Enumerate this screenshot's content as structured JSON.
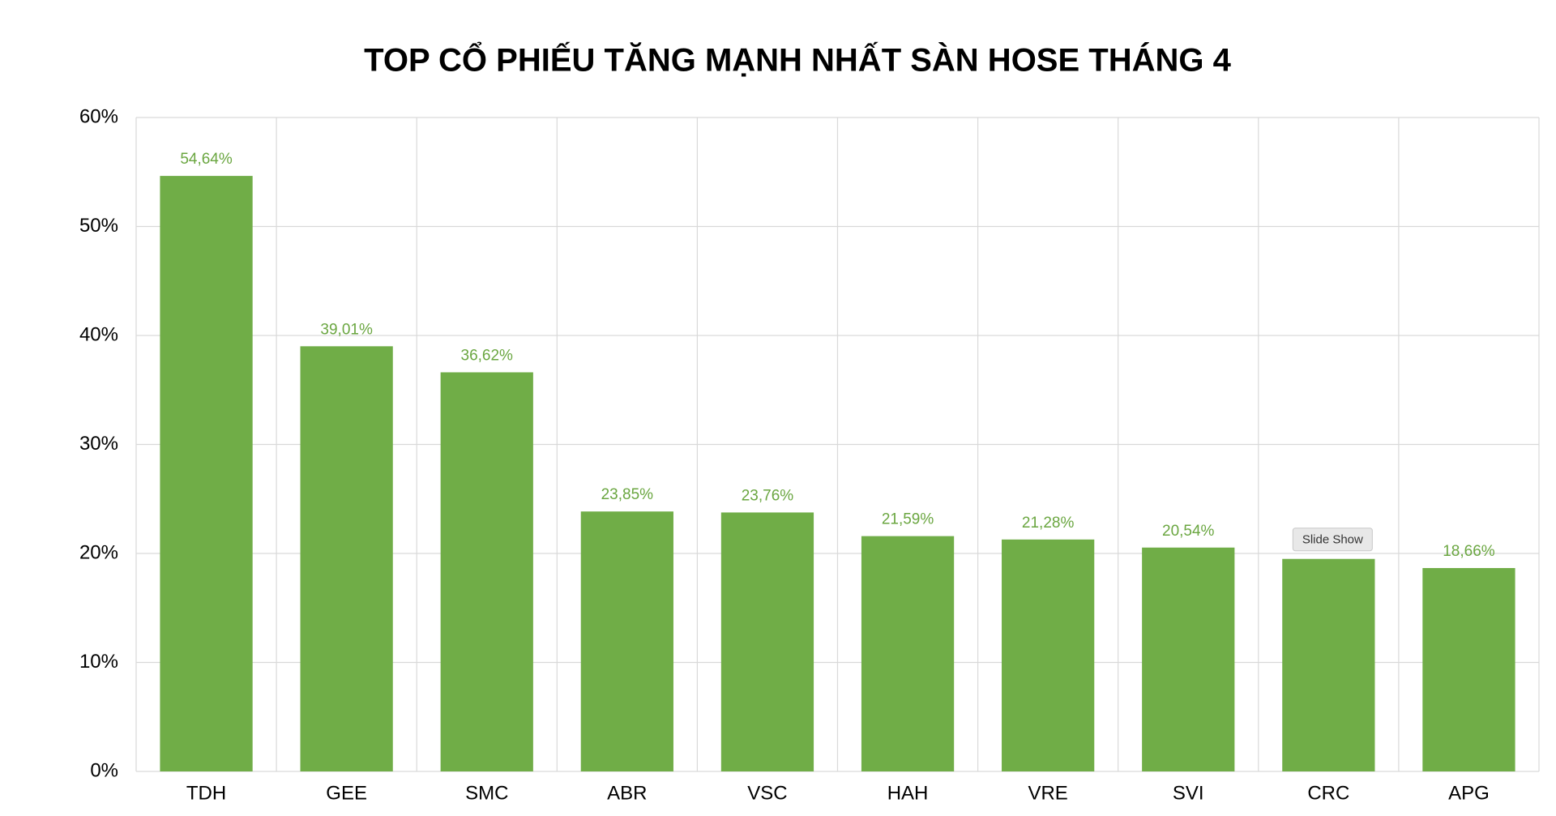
{
  "chart_data": {
    "type": "bar",
    "title": "TOP CỔ PHIẾU TĂNG MẠNH NHẤT SÀN HOSE THÁNG 4",
    "categories": [
      "TDH",
      "GEE",
      "SMC",
      "ABR",
      "VSC",
      "HAH",
      "VRE",
      "SVI",
      "CRC",
      "APG"
    ],
    "values": [
      54.64,
      39.01,
      36.62,
      23.85,
      23.76,
      21.59,
      21.28,
      20.54,
      19.5,
      18.66
    ],
    "value_labels": [
      "54,64%",
      "39,01%",
      "36,62%",
      "23,85%",
      "23,76%",
      "21,59%",
      "21,28%",
      "20,54%",
      null,
      "18,66%"
    ],
    "color": "#70ad47",
    "ylim": [
      0,
      60
    ],
    "yticks": [
      {
        "value": 0,
        "label": "0%"
      },
      {
        "value": 10,
        "label": "10%"
      },
      {
        "value": 20,
        "label": "20%"
      },
      {
        "value": 30,
        "label": "30%"
      },
      {
        "value": 40,
        "label": "40%"
      },
      {
        "value": 50,
        "label": "50%"
      },
      {
        "value": 60,
        "label": "60%"
      }
    ],
    "grid": true,
    "tooltip": "Slide Show"
  }
}
